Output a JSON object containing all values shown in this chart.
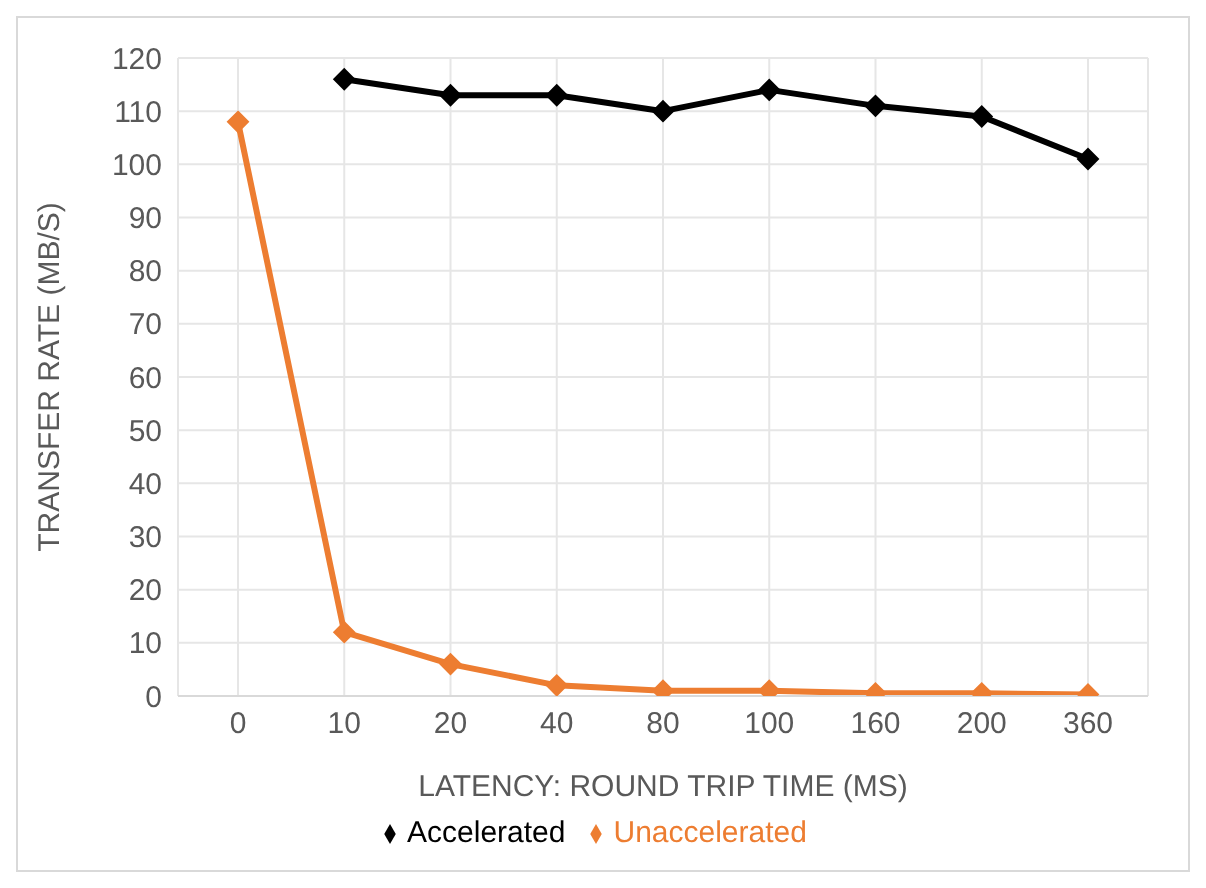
{
  "chart_data": {
    "type": "line",
    "xlabel": "LATENCY: ROUND TRIP TIME (MS)",
    "ylabel": "TRANSFER RATE (MB/S)",
    "categories": [
      "0",
      "10",
      "20",
      "40",
      "80",
      "100",
      "160",
      "200",
      "360"
    ],
    "series": [
      {
        "name": "Accelerated",
        "color": "#000000",
        "values": [
          null,
          116,
          113,
          113,
          110,
          114,
          111,
          109,
          101
        ]
      },
      {
        "name": "Unaccelerated",
        "color": "#ed7d31",
        "values": [
          108,
          12,
          6,
          2,
          1,
          1,
          0.5,
          0.5,
          0.3
        ]
      }
    ],
    "ylim": [
      0,
      120
    ],
    "yticks": [
      0,
      10,
      20,
      30,
      40,
      50,
      60,
      70,
      80,
      90,
      100,
      110,
      120
    ],
    "grid": true,
    "legend": "bottom",
    "marker": "diamond"
  }
}
